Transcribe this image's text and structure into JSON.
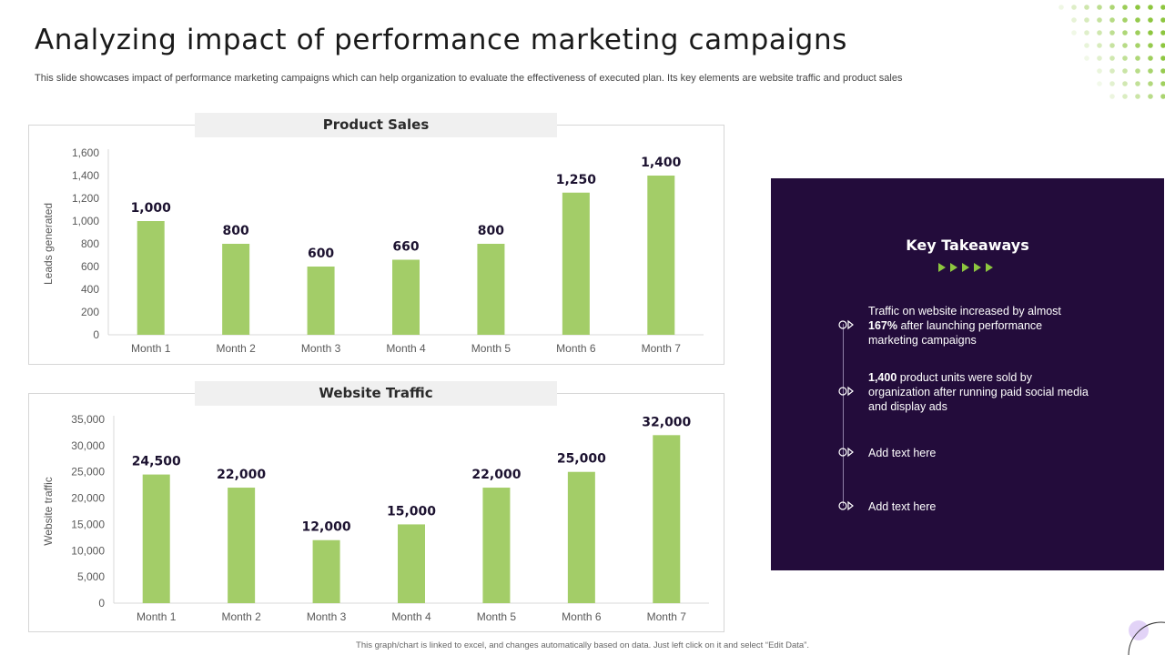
{
  "header": {
    "title": "Analyzing impact of performance marketing campaigns",
    "subtitle": "This slide showcases impact of performance marketing campaigns which can help organization to evaluate the effectiveness of executed plan. Its key elements are website traffic and product sales"
  },
  "colors": {
    "bar": "#a3cd68",
    "panel": "#230c3b",
    "accent": "#8dc63f"
  },
  "chart_data": [
    {
      "type": "bar",
      "title": "Product Sales",
      "ylabel": "Leads generated",
      "categories": [
        "Month 1",
        "Month 2",
        "Month 3",
        "Month 4",
        "Month 5",
        "Month 6",
        "Month 7"
      ],
      "values": [
        1000,
        800,
        600,
        660,
        800,
        1250,
        1400
      ],
      "ylim": [
        0,
        1600
      ],
      "yticks": [
        0,
        200,
        400,
        600,
        800,
        1000,
        1200,
        1400,
        1600
      ],
      "grid": false
    },
    {
      "type": "bar",
      "title": "Website Traffic",
      "ylabel": "Website traffic",
      "categories": [
        "Month 1",
        "Month 2",
        "Month 3",
        "Month 4",
        "Month 5",
        "Month 6",
        "Month 7"
      ],
      "values": [
        24500,
        22000,
        12000,
        15000,
        22000,
        25000,
        32000
      ],
      "ylim": [
        0,
        35000
      ],
      "yticks": [
        0,
        5000,
        10000,
        15000,
        20000,
        25000,
        30000,
        35000
      ],
      "grid": false
    }
  ],
  "takeaways": {
    "title": "Key Takeaways",
    "items": [
      {
        "pre": "Traffic  on website increased by almost ",
        "bold": "167%",
        "post": " after launching performance marketing campaigns"
      },
      {
        "pre": "",
        "bold": "1,400",
        "post": " product units were sold by organization after running paid social media and display ads"
      },
      {
        "pre": "Add text here",
        "bold": "",
        "post": ""
      },
      {
        "pre": "Add text here",
        "bold": "",
        "post": ""
      }
    ]
  },
  "footer": "This graph/chart is linked to excel, and changes automatically based on data. Just left click on it and select “Edit Data”."
}
